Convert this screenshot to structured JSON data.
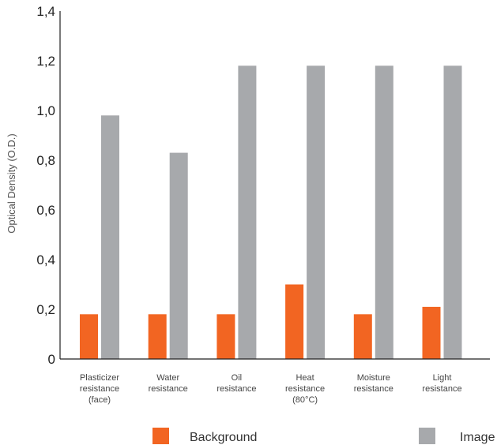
{
  "chart_data": {
    "type": "bar",
    "ylabel": "Optical Density (O.D.)",
    "ylim": [
      0,
      1.4
    ],
    "yticks": [
      "0",
      "0,2",
      "0,4",
      "0,6",
      "0,8",
      "1,0",
      "1,2",
      "1,4"
    ],
    "categories": [
      [
        "Plasticizer",
        "resistance",
        "(face)"
      ],
      [
        "Water",
        "resistance"
      ],
      [
        "Oil",
        "resistance"
      ],
      [
        "Heat",
        "resistance",
        "(80°C)"
      ],
      [
        "Moisture",
        "resistance"
      ],
      [
        "Light",
        "resistance"
      ]
    ],
    "series": [
      {
        "name": "Background",
        "color": "#f26522",
        "values": [
          0.18,
          0.18,
          0.18,
          0.3,
          0.18,
          0.21
        ]
      },
      {
        "name": "Image",
        "color": "#a7a9ac",
        "values": [
          0.98,
          0.83,
          1.18,
          1.18,
          1.18,
          1.18
        ]
      }
    ],
    "legend_position": "bottom",
    "grid": false
  }
}
